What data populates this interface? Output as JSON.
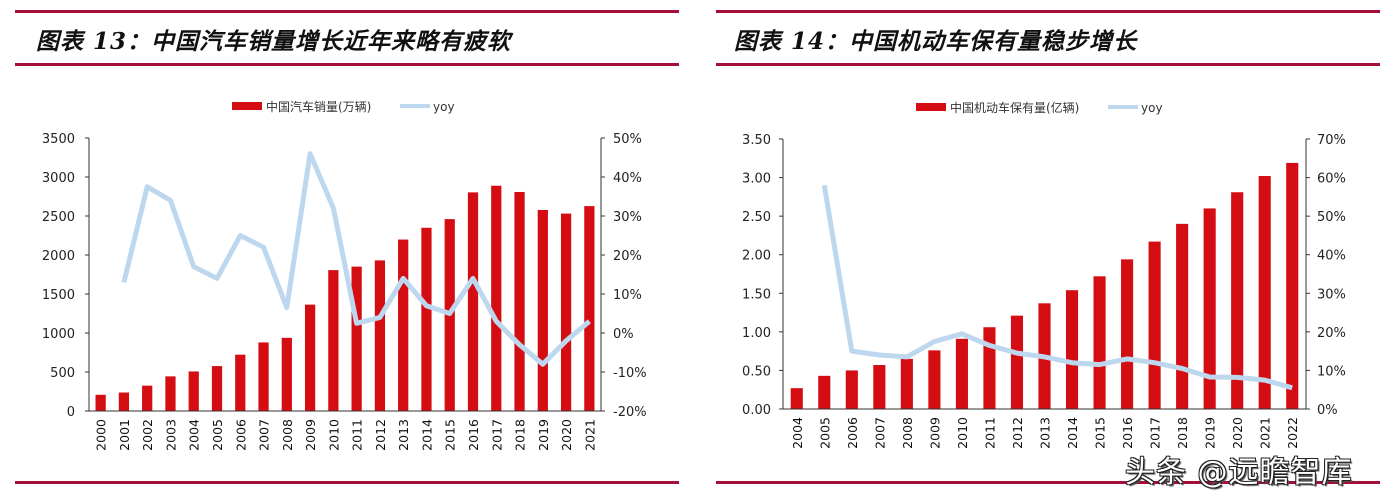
{
  "panels": [
    {
      "title": "图表 13：中国汽车销量增长近年来略有疲软",
      "legend": {
        "bar_label": "中国汽车销量(万辆)",
        "line_label": "yoy"
      }
    },
    {
      "title": "图表 14：中国机动车保有量稳步增长",
      "legend": {
        "bar_label": "中国机动车保有量(亿辆)",
        "line_label": "yoy"
      }
    }
  ],
  "colors": {
    "bar": "#d40d12",
    "line": "#bdd7ee",
    "rule": "#a50e36",
    "axis": "#333333"
  },
  "watermark": "头条 @远瞻智库",
  "chart_data": [
    {
      "type": "bar+line",
      "title": "图表 13：中国汽车销量增长近年来略有疲软",
      "categories": [
        "2000",
        "2001",
        "2002",
        "2003",
        "2004",
        "2005",
        "2006",
        "2007",
        "2008",
        "2009",
        "2010",
        "2011",
        "2012",
        "2013",
        "2014",
        "2015",
        "2016",
        "2017",
        "2018",
        "2019",
        "2020",
        "2021"
      ],
      "series": [
        {
          "name": "中国汽车销量(万辆)",
          "type": "bar",
          "axis": "left",
          "values": [
            208,
            237,
            325,
            444,
            507,
            576,
            722,
            879,
            938,
            1364,
            1806,
            1851,
            1931,
            2198,
            2349,
            2460,
            2803,
            2888,
            2808,
            2577,
            2531,
            2627
          ]
        },
        {
          "name": "yoy",
          "type": "line",
          "axis": "right",
          "values": [
            null,
            13,
            37.5,
            34,
            17,
            14,
            25,
            22,
            6.5,
            46,
            32,
            2.5,
            4,
            14,
            7,
            5,
            14,
            3,
            -3,
            -8,
            -2,
            3
          ]
        }
      ],
      "left_axis": {
        "min": 0,
        "max": 3500,
        "ticks": [
          "0",
          "500",
          "1000",
          "1500",
          "2000",
          "2500",
          "3000",
          "3500"
        ]
      },
      "right_axis": {
        "min": -20,
        "max": 50,
        "ticks": [
          "-20%",
          "-10%",
          "0%",
          "10%",
          "20%",
          "30%",
          "40%",
          "50%"
        ]
      },
      "legend_position": "top",
      "grid": false
    },
    {
      "type": "bar+line",
      "title": "图表 14：中国机动车保有量稳步增长",
      "categories": [
        "2004",
        "2005",
        "2006",
        "2007",
        "2008",
        "2009",
        "2010",
        "2011",
        "2012",
        "2013",
        "2014",
        "2015",
        "2016",
        "2017",
        "2018",
        "2019",
        "2020",
        "2021",
        "2022"
      ],
      "series": [
        {
          "name": "中国机动车保有量(亿辆)",
          "type": "bar",
          "axis": "left",
          "values": [
            0.27,
            0.43,
            0.5,
            0.57,
            0.65,
            0.76,
            0.91,
            1.06,
            1.21,
            1.37,
            1.54,
            1.72,
            1.94,
            2.17,
            2.4,
            2.6,
            2.81,
            3.02,
            3.19
          ]
        },
        {
          "name": "yoy",
          "type": "line",
          "axis": "right",
          "values": [
            null,
            58,
            15,
            14,
            13.5,
            17.5,
            19.5,
            16.5,
            14.5,
            13.5,
            12,
            11.5,
            13,
            12,
            10.5,
            8.3,
            8.2,
            7.5,
            5.5
          ]
        }
      ],
      "left_axis": {
        "min": 0,
        "max": 3.5,
        "ticks": [
          "0.00",
          "0.50",
          "1.00",
          "1.50",
          "2.00",
          "2.50",
          "3.00",
          "3.50"
        ]
      },
      "right_axis": {
        "min": 0,
        "max": 70,
        "ticks": [
          "0%",
          "10%",
          "20%",
          "30%",
          "40%",
          "50%",
          "60%",
          "70%"
        ]
      },
      "legend_position": "top",
      "grid": false
    }
  ]
}
